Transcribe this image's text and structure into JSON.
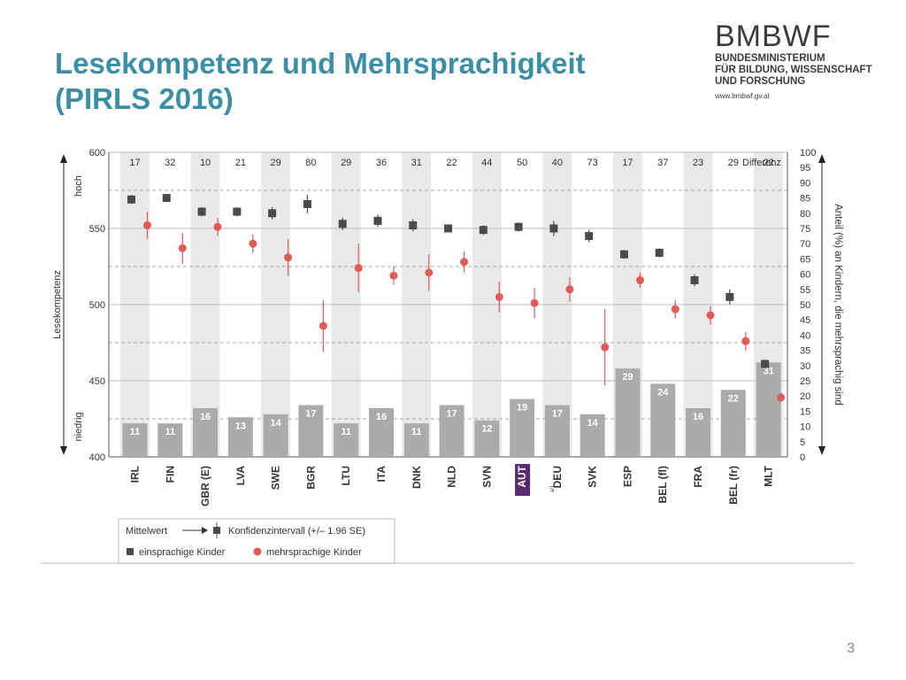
{
  "slide": {
    "title_line1": "Lesekompetenz und Mehrsprachigkeit",
    "title_line2": "(PIRLS 2016)",
    "page_number": "3"
  },
  "logo": {
    "name": "BMBWF",
    "line1": "BUNDESMINISTERIUM",
    "line2": "FÜR BILDUNG, WISSENSCHAFT",
    "line3": "UND FORSCHUNG",
    "url": "www.bmbwf.gv.at"
  },
  "chart_data": {
    "type": "scatter",
    "title": "",
    "ylabel": "Lesekompetenz",
    "ylabel_top": "hoch",
    "ylabel_bottom": "niedrig",
    "ylim": [
      400,
      600
    ],
    "yticks": [
      400,
      450,
      500,
      550,
      600
    ],
    "y2label": "Anteil (%) an Kindern, die mehrsprachig sind",
    "y2lim": [
      0,
      100
    ],
    "y2ticks": [
      0,
      5,
      10,
      15,
      20,
      25,
      30,
      35,
      40,
      45,
      50,
      55,
      60,
      65,
      70,
      75,
      80,
      85,
      90,
      95,
      100
    ],
    "difference_header": "Differenz",
    "categories": [
      "IRL",
      "FIN",
      "GBR (E)",
      "LVA",
      "SWE",
      "BGR",
      "LTU",
      "ITA",
      "DNK",
      "NLD",
      "SVN",
      "AUT",
      "DEU",
      "SVK",
      "ESP",
      "BEL (fl)",
      "FRA",
      "BEL (fr)",
      "MLT"
    ],
    "category_superscripts": {
      "DEU": "a/1"
    },
    "highlight_category": "AUT",
    "differences": [
      "17",
      "32",
      "10",
      "21",
      "29",
      "80",
      "29",
      "36",
      "31",
      "22",
      "44",
      "50",
      "40",
      "73",
      "17",
      "37",
      "23",
      "29",
      "22"
    ],
    "series": [
      {
        "name": "einsprachige Kinder",
        "axis": "left",
        "marker": "square",
        "color": "#4a4a4a",
        "values": [
          569,
          570,
          561,
          561,
          560,
          566,
          553,
          555,
          552,
          550,
          549,
          551,
          550,
          545,
          533,
          534,
          516,
          505,
          461
        ],
        "ci": [
          3,
          2,
          3,
          3,
          4,
          6,
          4,
          4,
          4,
          2,
          3,
          3,
          5,
          4,
          3,
          3,
          4,
          5,
          3
        ]
      },
      {
        "name": "mehrsprachige Kinder",
        "axis": "left",
        "marker": "circle",
        "color": "#e05a58",
        "values": [
          552,
          537,
          551,
          540,
          531,
          486,
          524,
          519,
          521,
          528,
          505,
          501,
          510,
          472,
          516,
          497,
          493,
          476,
          439
        ],
        "ci": [
          9,
          10,
          6,
          6,
          12,
          17,
          16,
          6,
          12,
          7,
          10,
          10,
          8,
          25,
          5,
          6,
          6,
          6,
          3
        ]
      },
      {
        "name": "Anteil mehrsprachig (%)",
        "axis": "right",
        "type": "bar",
        "color": "#ababab",
        "values": [
          11,
          11,
          16,
          13,
          14,
          17,
          11,
          16,
          11,
          17,
          12,
          19,
          17,
          14,
          29,
          24,
          16,
          22,
          31
        ]
      }
    ],
    "legend": {
      "mean_label": "Mittelwert",
      "ci_label": "Konfidenzintervall (+/– 1.96 SE)",
      "mono_label": "einsprachige Kinder",
      "multi_label": "mehrsprachige Kinder",
      "position": "bottom-left"
    },
    "grid": true
  }
}
